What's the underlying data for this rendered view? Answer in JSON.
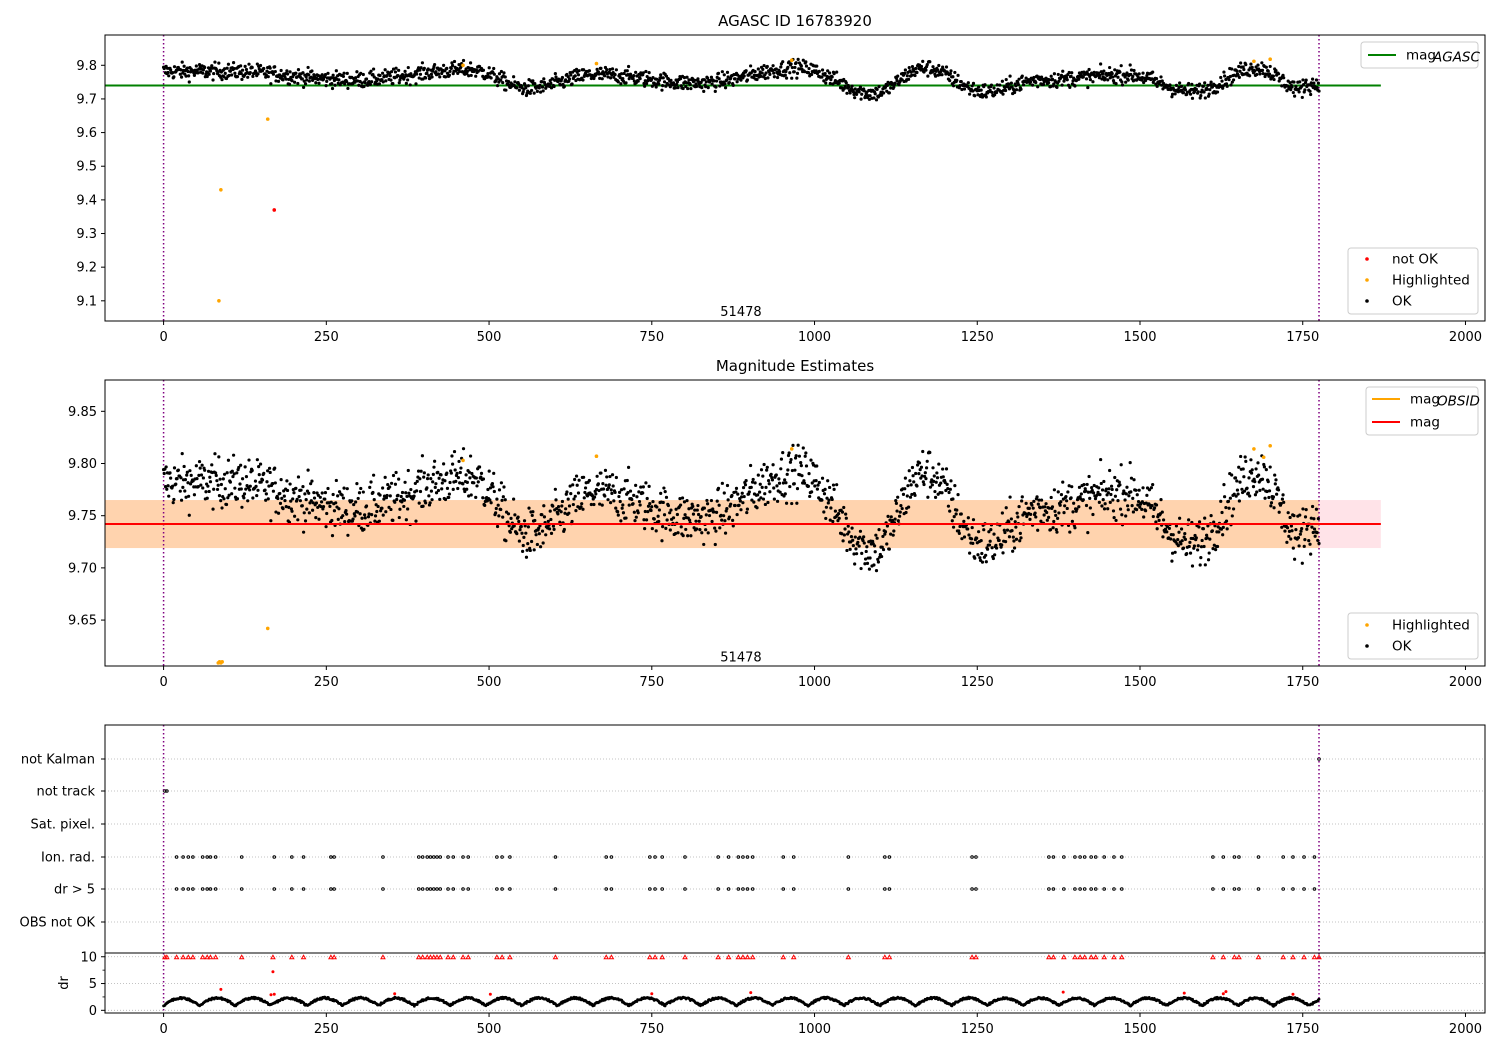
{
  "chart_data": [
    {
      "id": "top",
      "type": "scatter",
      "title": "AGASC ID 16783920",
      "xlim": [
        -90,
        2030
      ],
      "ylim": [
        9.04,
        9.89
      ],
      "xticks": [
        0,
        250,
        500,
        750,
        1000,
        1250,
        1500,
        1750,
        2000
      ],
      "yticks": [
        9.1,
        9.2,
        9.3,
        9.4,
        9.5,
        9.6,
        9.7,
        9.8
      ],
      "vlines": [
        0,
        1775
      ],
      "obsid_label": {
        "text": "51478",
        "x": 887,
        "y": 9.07
      },
      "hline": {
        "name": "mag_AGASC",
        "value": 9.74,
        "x": [
          -90,
          1870
        ],
        "color": "#008000"
      },
      "legend_lines": [
        {
          "name": "mag",
          "sub": "AGASC",
          "color": "#008000"
        }
      ],
      "legend_points": [
        {
          "name": "not OK",
          "color": "#ff0000"
        },
        {
          "name": "Highlighted",
          "color": "#ffa500"
        },
        {
          "name": "OK",
          "color": "#000000"
        }
      ],
      "series": [
        {
          "name": "not OK",
          "color": "#ff0000",
          "x": [
            170
          ],
          "y": [
            9.37
          ]
        },
        {
          "name": "Highlighted",
          "color": "#ffa500",
          "x": [
            85,
            88,
            160,
            460,
            665,
            965,
            1675,
            1700
          ],
          "y": [
            9.1,
            9.43,
            9.64,
            9.8,
            9.805,
            9.815,
            9.812,
            9.818
          ]
        },
        {
          "name": "OK",
          "color": "#000000",
          "generated": "oscillating",
          "x_range": [
            0,
            1775
          ],
          "n": 1800,
          "base": 9.742
        }
      ]
    },
    {
      "id": "mid",
      "type": "scatter",
      "title": "Magnitude Estimates",
      "xlim": [
        -90,
        2030
      ],
      "ylim": [
        9.606,
        9.88
      ],
      "xticks": [
        0,
        250,
        500,
        750,
        1000,
        1250,
        1500,
        1750,
        2000
      ],
      "yticks": [
        9.65,
        9.7,
        9.75,
        9.8,
        9.85
      ],
      "vlines": [
        0,
        1775
      ],
      "obsid_label": {
        "text": "51478",
        "x": 887,
        "y": 9.615
      },
      "hline": {
        "name": "mag",
        "value": 9.742,
        "x": [
          -90,
          1870
        ],
        "color": "#ff0000"
      },
      "bands": [
        {
          "y": [
            9.719,
            9.765
          ],
          "x": [
            -90,
            1870
          ],
          "color": "#ffc0cb",
          "alpha": 0.45
        },
        {
          "y": [
            9.719,
            9.765
          ],
          "x": [
            -90,
            1775
          ],
          "color": "#ffa500",
          "alpha": 0.25
        }
      ],
      "legend_lines": [
        {
          "name": "mag",
          "sub": "OBSID",
          "color": "#ffa500"
        },
        {
          "name": "mag",
          "sub": "",
          "color": "#ff0000"
        }
      ],
      "legend_points": [
        {
          "name": "Highlighted",
          "color": "#ffa500"
        },
        {
          "name": "OK",
          "color": "#000000"
        }
      ],
      "series": [
        {
          "name": "Highlighted",
          "color": "#ffa500",
          "x": [
            84,
            86,
            88,
            90,
            160,
            460,
            665,
            965,
            1675,
            1690,
            1700
          ],
          "y": [
            9.609,
            9.61,
            9.609,
            9.61,
            9.642,
            9.803,
            9.807,
            9.814,
            9.814,
            9.806,
            9.817
          ]
        },
        {
          "name": "OK",
          "color": "#000000",
          "generated": "oscillating",
          "x_range": [
            0,
            1775
          ],
          "n": 1800,
          "base": 9.742
        }
      ]
    },
    {
      "id": "flags",
      "type": "scatter",
      "categories": [
        "not Kalman",
        "not track",
        "Sat. pixel.",
        "Ion. rad.",
        "dr > 5",
        "OBS not OK"
      ],
      "xlim": [
        -90,
        2030
      ],
      "vlines": [
        0,
        1775
      ],
      "flag_points": {
        "not Kalman": [
          1775
        ],
        "not track": [
          2,
          5
        ],
        "Sat. pixel.": [],
        "Ion. rad.": [
          20,
          30,
          38,
          45,
          60,
          67,
          72,
          80,
          120,
          170,
          197,
          215,
          257,
          262,
          337,
          392,
          398,
          405,
          410,
          415,
          420,
          425,
          437,
          445,
          460,
          468,
          512,
          520,
          532,
          602,
          680,
          688,
          747,
          755,
          766,
          801,
          852,
          868,
          883,
          890,
          897,
          905,
          952,
          968,
          1052,
          1108,
          1115,
          1242,
          1248,
          1360,
          1367,
          1383,
          1400,
          1408,
          1415,
          1425,
          1432,
          1445,
          1460,
          1472,
          1612,
          1628,
          1645,
          1652,
          1682,
          1720,
          1735,
          1752,
          1768
        ],
        "dr > 5": [
          20,
          30,
          38,
          45,
          60,
          67,
          72,
          80,
          120,
          170,
          197,
          215,
          257,
          262,
          337,
          392,
          398,
          405,
          410,
          415,
          420,
          425,
          437,
          445,
          460,
          468,
          512,
          520,
          532,
          602,
          680,
          688,
          747,
          755,
          766,
          801,
          852,
          868,
          883,
          890,
          897,
          905,
          952,
          968,
          1052,
          1108,
          1115,
          1242,
          1248,
          1360,
          1367,
          1383,
          1400,
          1408,
          1415,
          1425,
          1432,
          1445,
          1460,
          1472,
          1612,
          1628,
          1645,
          1652,
          1682,
          1720,
          1735,
          1752,
          1768
        ],
        "OBS not OK": []
      }
    },
    {
      "id": "dr",
      "type": "scatter",
      "ylabel": "dr",
      "xlim": [
        -90,
        2030
      ],
      "ylim": [
        -0.5,
        10.7
      ],
      "xticks": [
        0,
        250,
        500,
        750,
        1000,
        1250,
        1500,
        1750,
        2000
      ],
      "yticks": [
        0,
        5,
        10
      ],
      "vlines": [
        0,
        1775
      ],
      "series": [
        {
          "name": "dr > 5",
          "color": "#ff0000",
          "clip_value": 10,
          "x": [
            2,
            5,
            20,
            30,
            38,
            45,
            60,
            67,
            72,
            80,
            120,
            168,
            197,
            215,
            257,
            262,
            337,
            392,
            398,
            405,
            410,
            415,
            420,
            425,
            437,
            445,
            460,
            468,
            512,
            520,
            532,
            602,
            680,
            688,
            747,
            755,
            766,
            801,
            852,
            868,
            883,
            890,
            897,
            905,
            952,
            968,
            1052,
            1108,
            1115,
            1242,
            1248,
            1360,
            1367,
            1383,
            1400,
            1408,
            1415,
            1425,
            1432,
            1445,
            1460,
            1472,
            1612,
            1628,
            1645,
            1652,
            1682,
            1720,
            1735,
            1752,
            1768,
            1775
          ]
        },
        {
          "name": "dr red",
          "color": "#ff0000",
          "x": [
            168,
            88,
            165,
            170,
            355,
            502,
            750,
            902,
            1382,
            1568,
            1628,
            1632,
            1735
          ],
          "y": [
            7.2,
            3.9,
            2.9,
            3.0,
            3.1,
            3.0,
            3.1,
            3.3,
            3.4,
            3.2,
            3.1,
            3.5,
            3.0
          ]
        },
        {
          "name": "dr",
          "color": "#000000",
          "generated": "segments",
          "x_range": [
            0,
            1775
          ],
          "n": 1600
        }
      ]
    }
  ]
}
